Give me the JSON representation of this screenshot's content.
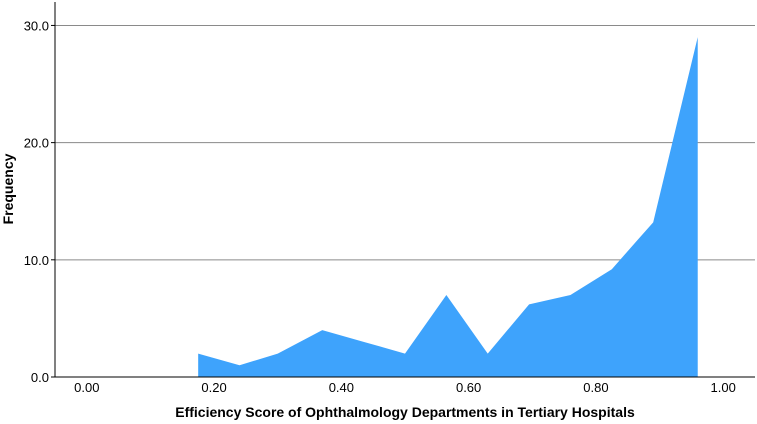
{
  "chart_data": {
    "type": "area",
    "xlabel": "Efficiency Score of Ophthalmology Departments in Tertiary Hospitals",
    "ylabel": "Frequency",
    "xlim": [
      -0.05,
      1.05
    ],
    "ylim": [
      0,
      32
    ],
    "x_ticks": [
      0.0,
      0.2,
      0.4,
      0.6,
      0.8,
      1.0
    ],
    "x_tick_labels": [
      "0.00",
      "0.20",
      "0.40",
      "0.60",
      "0.80",
      "1.00"
    ],
    "y_ticks": [
      0,
      10,
      20,
      30
    ],
    "y_tick_labels": [
      "0.0",
      "10.0",
      "20.0",
      "30.0"
    ],
    "grid": "horizontal",
    "color": "#3ea3fc",
    "x": [
      0.175,
      0.24,
      0.3,
      0.37,
      0.435,
      0.5,
      0.565,
      0.63,
      0.695,
      0.76,
      0.825,
      0.89,
      0.96
    ],
    "values": [
      2,
      1,
      2,
      4,
      3,
      2,
      7,
      2,
      6.2,
      7,
      9.2,
      13.2,
      29
    ]
  }
}
